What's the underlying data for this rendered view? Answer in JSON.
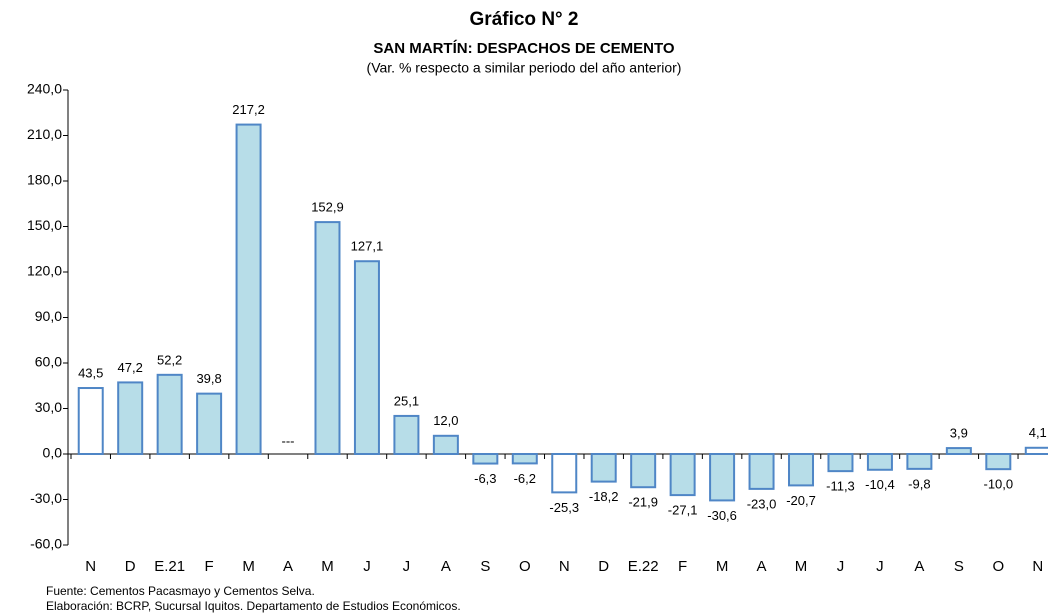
{
  "chart_data": {
    "type": "bar",
    "title": "Gráfico N° 2",
    "subtitle": "SAN MARTÍN: DESPACHOS DE CEMENTO",
    "subtitle2": "(Var. % respecto a similar periodo del año anterior)",
    "categories": [
      "N",
      "D",
      "E.21",
      "F",
      "M",
      "A",
      "M",
      "J",
      "J",
      "A",
      "S",
      "O",
      "N",
      "D",
      "E.22",
      "F",
      "M",
      "A",
      "M",
      "J",
      "J",
      "A",
      "S",
      "O",
      "N"
    ],
    "values": [
      43.5,
      47.2,
      52.2,
      39.8,
      217.2,
      null,
      152.9,
      127.1,
      25.1,
      12.0,
      -6.3,
      -6.2,
      -25.3,
      -18.2,
      -21.9,
      -27.1,
      -30.6,
      -23.0,
      -20.7,
      -11.3,
      -10.4,
      -9.8,
      3.9,
      -10.0,
      4.1
    ],
    "value_labels": [
      "43,5",
      "47,2",
      "52,2",
      "39,8",
      "217,2",
      "---",
      "152,9",
      "127,1",
      "25,1",
      "12,0",
      "-6,3",
      "-6,2",
      "-25,3",
      "-18,2",
      "-21,9",
      "-27,1",
      "-30,6",
      "-23,0",
      "-20,7",
      "-11,3",
      "-10,4",
      "-9,8",
      "3,9",
      "-10,0",
      "4,1"
    ],
    "colors": [
      "#ffffff",
      "#b7dde8",
      "#b7dde8",
      "#b7dde8",
      "#b7dde8",
      "#b7dde8",
      "#b7dde8",
      "#b7dde8",
      "#b7dde8",
      "#b7dde8",
      "#b7dde8",
      "#b7dde8",
      "#ffffff",
      "#b7dde8",
      "#b7dde8",
      "#b7dde8",
      "#b7dde8",
      "#b7dde8",
      "#b7dde8",
      "#b7dde8",
      "#b7dde8",
      "#b7dde8",
      "#b7dde8",
      "#b7dde8",
      "#ffffff"
    ],
    "edge_color": "#4f86c6",
    "ylim": [
      -60,
      240
    ],
    "yticks": [
      {
        "value": -60,
        "label": "-60,0"
      },
      {
        "value": -30,
        "label": "-30,0"
      },
      {
        "value": 0,
        "label": "0,0"
      },
      {
        "value": 30,
        "label": "30,0"
      },
      {
        "value": 60,
        "label": "60,0"
      },
      {
        "value": 90,
        "label": "90,0"
      },
      {
        "value": 120,
        "label": "120,0"
      },
      {
        "value": 150,
        "label": "150,0"
      },
      {
        "value": 180,
        "label": "180,0"
      },
      {
        "value": 210,
        "label": "210,0"
      },
      {
        "value": 240,
        "label": "240,0"
      }
    ],
    "grid": false,
    "notes": [
      "Fuente: Cementos Pacasmayo y Cementos Selva.",
      "Elaboración: BCRP, Sucursal Iquitos. Departamento de Estudios Económicos."
    ]
  }
}
